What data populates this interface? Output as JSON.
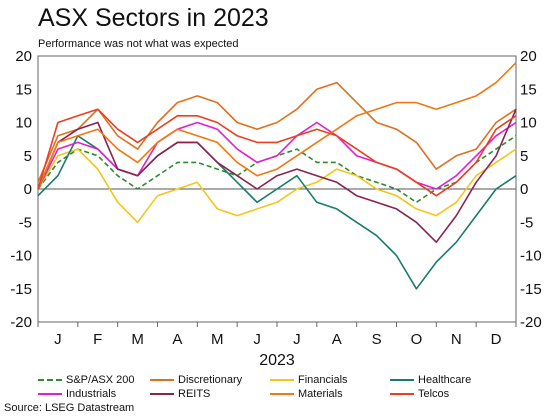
{
  "chart_data": {
    "type": "line",
    "title": "ASX Sectors in 2023",
    "subtitle": "Performance was not what was expected",
    "xlabel": "2023",
    "ylabel": "",
    "ylim": [
      -20,
      20
    ],
    "yticks": [
      -20,
      -15,
      -10,
      -5,
      0,
      5,
      10,
      15,
      20
    ],
    "months": [
      "J",
      "F",
      "M",
      "A",
      "M",
      "J",
      "J",
      "A",
      "S",
      "O",
      "N",
      "D"
    ],
    "x": [
      0,
      1,
      2,
      3,
      4,
      5,
      6,
      7,
      8,
      9,
      10,
      11,
      12,
      13,
      14,
      15,
      16,
      17,
      18,
      19,
      20,
      21,
      22,
      23,
      24
    ],
    "grid": false,
    "legend_position": "bottom",
    "source": "Source: LSEG Datastream",
    "series": [
      {
        "name": "S&P/ASX 200",
        "color": "#2e8b2e",
        "dash": true,
        "values": [
          0,
          4,
          6,
          5,
          2,
          0,
          2,
          4,
          4,
          3,
          2,
          4,
          5,
          6,
          4,
          4,
          2,
          1,
          0,
          -2,
          0,
          1,
          4,
          6,
          8
        ]
      },
      {
        "name": "Discretionary",
        "color": "#e07020",
        "dash": false,
        "values": [
          1,
          8,
          9,
          12,
          8,
          6,
          10,
          13,
          14,
          13,
          10,
          9,
          10,
          12,
          15,
          16,
          13,
          10,
          9,
          7,
          3,
          5,
          6,
          10,
          12
        ]
      },
      {
        "name": "Financials",
        "color": "#f5c518",
        "dash": false,
        "values": [
          0,
          5,
          6,
          3,
          -2,
          -5,
          -1,
          0,
          1,
          -3,
          -4,
          -3,
          -2,
          0,
          1,
          3,
          2,
          0,
          -1,
          -3,
          -4,
          -2,
          2,
          4,
          6
        ]
      },
      {
        "name": "Healthcare",
        "color": "#1a7a6e",
        "dash": false,
        "values": [
          -1,
          2,
          8,
          6,
          3,
          2,
          5,
          7,
          7,
          4,
          1,
          -2,
          0,
          2,
          -2,
          -3,
          -5,
          -7,
          -10,
          -15,
          -11,
          -8,
          -4,
          0,
          2
        ]
      },
      {
        "name": "Industrials",
        "color": "#e020d0",
        "dash": false,
        "values": [
          0,
          6,
          7,
          6,
          3,
          2,
          7,
          9,
          10,
          9,
          6,
          4,
          5,
          8,
          10,
          8,
          5,
          4,
          3,
          1,
          0,
          2,
          5,
          8,
          10
        ]
      },
      {
        "name": "REITS",
        "color": "#8b2252",
        "dash": false,
        "values": [
          0,
          7,
          9,
          10,
          3,
          2,
          5,
          7,
          7,
          4,
          2,
          0,
          2,
          3,
          2,
          1,
          -1,
          -2,
          -3,
          -5,
          -8,
          -4,
          1,
          5,
          12
        ]
      },
      {
        "name": "Materials",
        "color": "#f07810",
        "dash": false,
        "values": [
          0,
          7,
          8,
          9,
          6,
          4,
          7,
          9,
          8,
          7,
          4,
          2,
          3,
          5,
          7,
          9,
          11,
          12,
          13,
          13,
          12,
          13,
          14,
          16,
          19
        ]
      },
      {
        "name": "Telcos",
        "color": "#e84020",
        "dash": false,
        "values": [
          0,
          10,
          11,
          12,
          9,
          7,
          9,
          11,
          11,
          10,
          8,
          7,
          7,
          8,
          9,
          8,
          6,
          4,
          3,
          1,
          -1,
          1,
          4,
          9,
          11
        ]
      }
    ]
  }
}
